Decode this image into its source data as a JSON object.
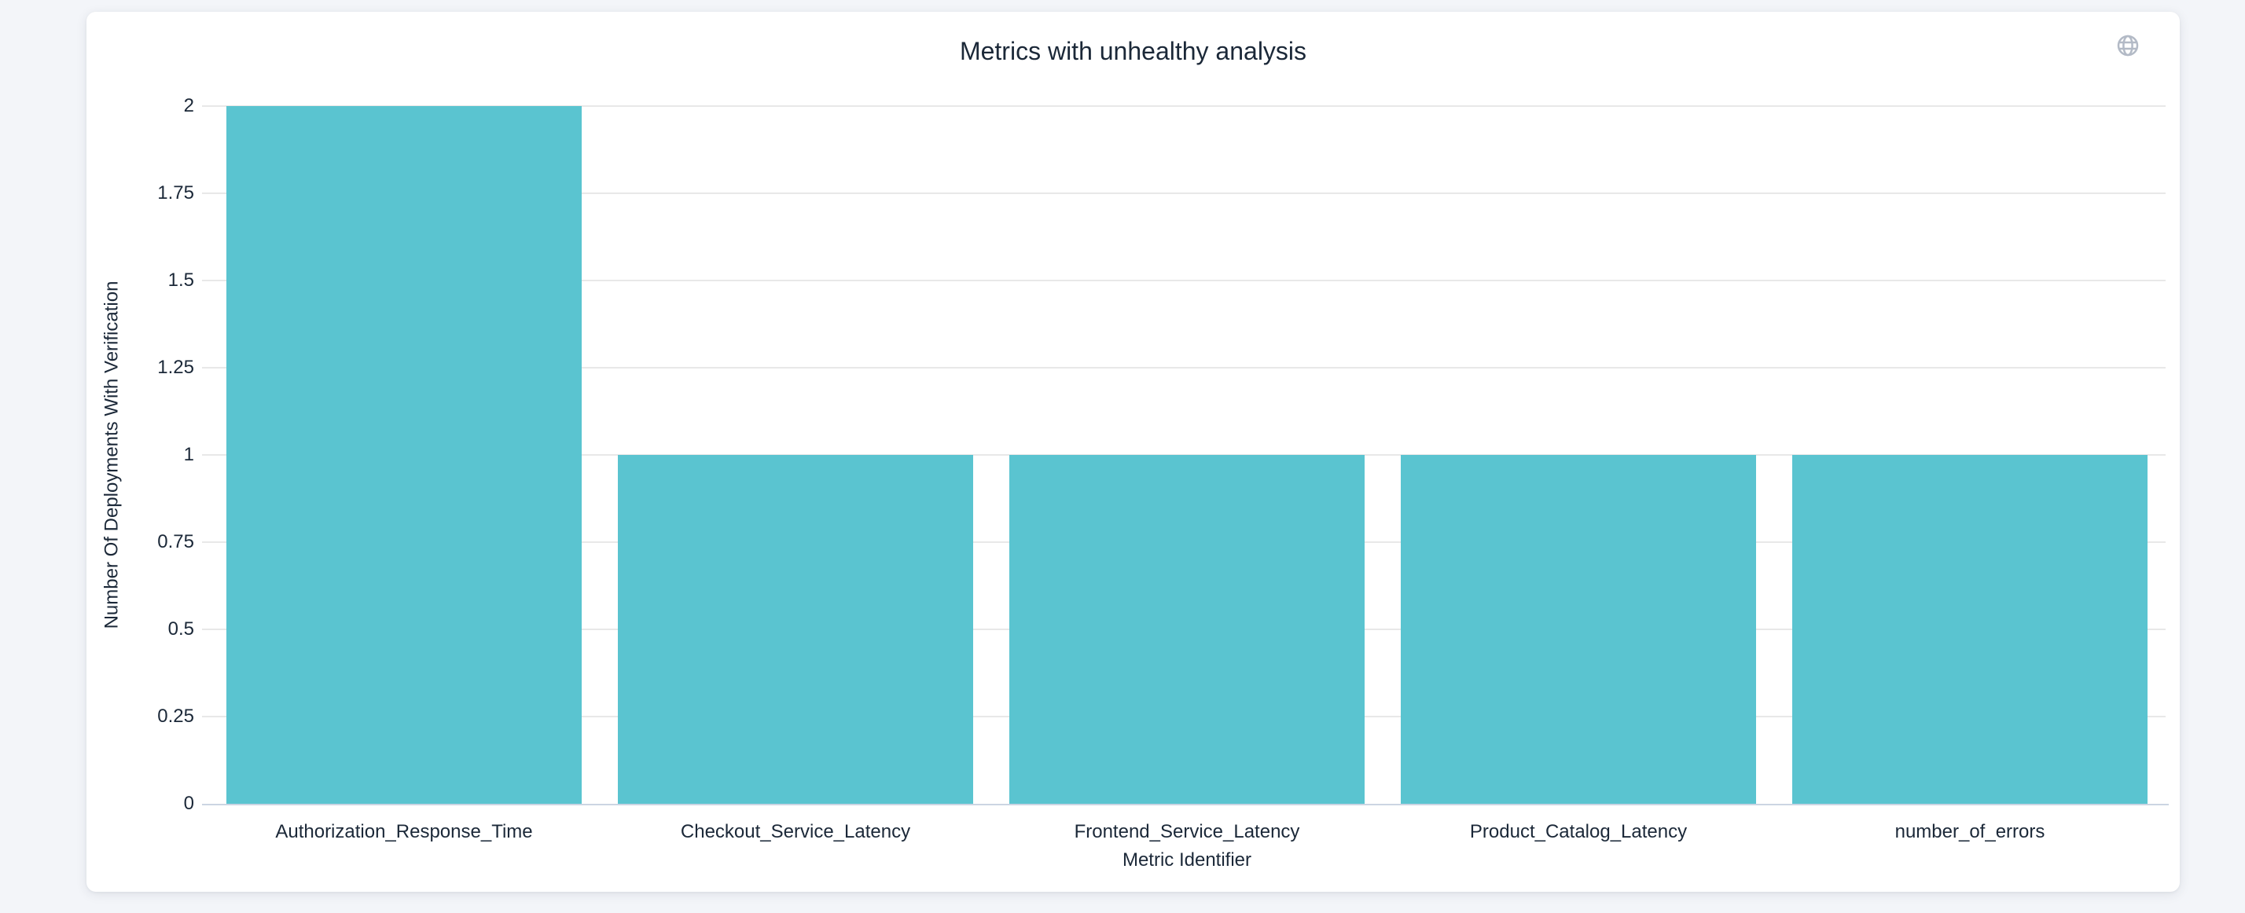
{
  "page": {
    "background": "#f3f5f9"
  },
  "card": {
    "background": "#ffffff"
  },
  "header": {
    "title": "Metrics with unhealthy analysis",
    "globe_icon": "globe-icon"
  },
  "chart_data": {
    "type": "bar",
    "title": "Metrics with unhealthy analysis",
    "categories": [
      "Authorization_Response_Time",
      "Checkout_Service_Latency",
      "Frontend_Service_Latency",
      "Product_Catalog_Latency",
      "number_of_errors"
    ],
    "values": [
      2,
      1,
      1,
      1,
      1
    ],
    "xlabel": "Metric Identifier",
    "ylabel": "Number Of Deployments With Verification",
    "ylim": [
      0,
      2
    ],
    "yticks": [
      0,
      0.25,
      0.5,
      0.75,
      1,
      1.25,
      1.5,
      1.75,
      2
    ],
    "ytick_labels": [
      "0",
      "0.25",
      "0.5",
      "0.75",
      "1",
      "1.25",
      "1.5",
      "1.75",
      "2"
    ],
    "grid": true,
    "legend": false,
    "bar_color": "#5ac4d0",
    "grid_color": "#e8e8e8",
    "axis_line_color": "#ccd5e3",
    "text_color": "#1b2838",
    "icon_color": "#b3bac6"
  }
}
